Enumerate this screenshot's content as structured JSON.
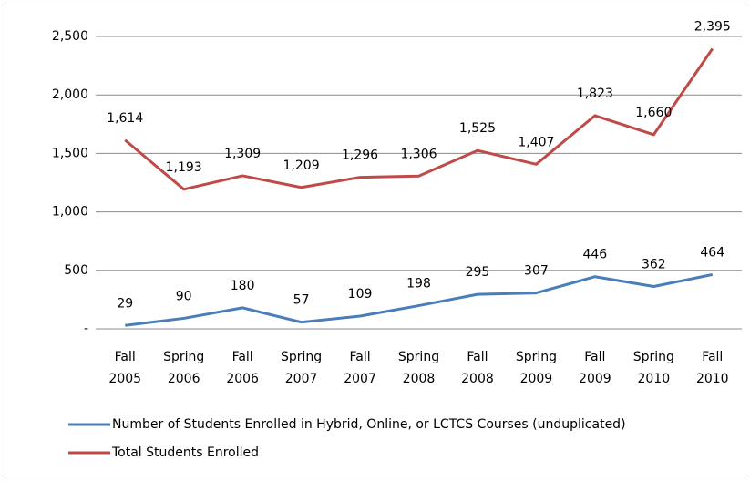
{
  "chart_data": {
    "type": "line",
    "categories": [
      "Fall 2005",
      "Spring 2006",
      "Fall 2006",
      "Spring 2007",
      "Fall 2007",
      "Spring 2008",
      "Fall 2008",
      "Spring 2009",
      "Fall 2009",
      "Spring 2010",
      "Fall 2010"
    ],
    "series": [
      {
        "name": "Number of Students Enrolled in Hybrid, Online, or LCTCS Courses (unduplicated)",
        "color": "#4a7ebb",
        "values": [
          29,
          90,
          180,
          57,
          109,
          198,
          295,
          307,
          446,
          362,
          464
        ]
      },
      {
        "name": "Total Students Enrolled",
        "color": "#be4b48",
        "values": [
          1614,
          1193,
          1309,
          1209,
          1296,
          1306,
          1525,
          1407,
          1823,
          1660,
          2395
        ],
        "value_labels": [
          "1,614",
          "1,193",
          "1,309",
          "1,209",
          "1,296",
          "1,306",
          "1,525",
          "1,407",
          "1,823",
          "1,660",
          "2,395"
        ]
      }
    ],
    "ylim": [
      0,
      2500
    ],
    "yticks": [
      {
        "value": 0,
        "label": "-"
      },
      500,
      {
        "value": 1000,
        "label": "1,000"
      },
      {
        "value": 1500,
        "label": "1,500"
      },
      {
        "value": 2000,
        "label": "2,000"
      },
      {
        "value": 2500,
        "label": "2,500"
      }
    ],
    "grid": true,
    "legend": "bottom"
  }
}
